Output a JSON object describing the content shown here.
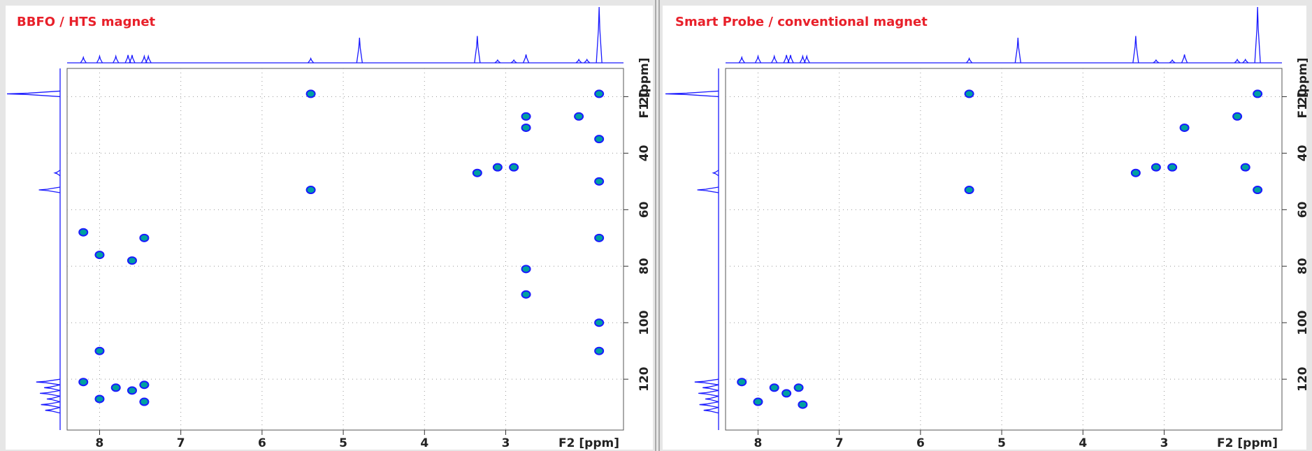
{
  "chart_data": [
    {
      "type": "scatter",
      "title": "BBFO / HTS magnet",
      "xlabel": "F2 [ppm]",
      "ylabel": "F1 [ppm]",
      "xlim": [
        8.4,
        1.55
      ],
      "ylim": [
        10,
        138
      ],
      "xticks": [
        8,
        7,
        6,
        5,
        4,
        3
      ],
      "yticks": [
        20,
        40,
        60,
        80,
        100,
        120
      ],
      "grid": true,
      "color": "#1a1aff",
      "inner_color": "#00a0a0",
      "x": [
        8.2,
        8.2,
        8.0,
        8.0,
        8.0,
        7.8,
        7.6,
        7.6,
        7.45,
        7.45,
        7.45,
        5.4,
        5.4,
        3.35,
        3.1,
        2.9,
        2.75,
        2.75,
        2.1,
        1.85,
        1.85,
        1.85,
        1.85,
        1.85,
        1.85,
        2.75,
        2.75
      ],
      "y": [
        121,
        68,
        127,
        76,
        110,
        123,
        124,
        78,
        122,
        128,
        70,
        53,
        19,
        47,
        45,
        45,
        31,
        27,
        27,
        19,
        35,
        50,
        70,
        100,
        110,
        81,
        90
      ],
      "f2_projection": {
        "x": [
          8.2,
          8.0,
          7.8,
          7.65,
          7.6,
          7.45,
          7.4,
          5.4,
          4.8,
          3.35,
          3.1,
          2.9,
          2.75,
          2.1,
          2.0,
          1.85
        ],
        "values": [
          10,
          12,
          12,
          14,
          14,
          12,
          12,
          8,
          45,
          48,
          5,
          5,
          15,
          6,
          6,
          100
        ]
      },
      "f1_projection": {
        "y": [
          19,
          47,
          53,
          121,
          123,
          125,
          127,
          129,
          131
        ],
        "values": [
          100,
          10,
          40,
          45,
          30,
          38,
          25,
          36,
          28
        ]
      }
    },
    {
      "type": "scatter",
      "title": "Smart Probe / conventional magnet",
      "xlabel": "F2 [ppm]",
      "ylabel": "F1 [ppm]",
      "xlim": [
        8.4,
        1.55
      ],
      "ylim": [
        10,
        138
      ],
      "xticks": [
        8,
        7,
        6,
        5,
        4,
        3
      ],
      "yticks": [
        20,
        40,
        60,
        80,
        100,
        120
      ],
      "grid": true,
      "color": "#1a1aff",
      "inner_color": "#00a0a0",
      "x": [
        8.2,
        8.0,
        7.8,
        7.65,
        7.5,
        7.45,
        5.4,
        5.4,
        3.35,
        3.1,
        2.9,
        2.75,
        2.1,
        2.0,
        1.85,
        1.85
      ],
      "y": [
        121,
        128,
        123,
        125,
        123,
        129,
        53,
        19,
        47,
        45,
        45,
        31,
        27,
        45,
        19,
        53
      ],
      "f2_projection": {
        "x": [
          8.2,
          8.0,
          7.8,
          7.65,
          7.6,
          7.45,
          7.4,
          5.4,
          4.8,
          3.35,
          3.1,
          2.9,
          2.75,
          2.1,
          2.0,
          1.85
        ],
        "values": [
          10,
          12,
          12,
          14,
          14,
          12,
          12,
          8,
          45,
          48,
          5,
          5,
          15,
          6,
          6,
          100
        ]
      },
      "f1_projection": {
        "y": [
          19,
          47,
          53,
          121,
          123,
          125,
          127,
          129,
          131
        ],
        "values": [
          100,
          10,
          40,
          45,
          30,
          38,
          25,
          36,
          28
        ]
      }
    }
  ]
}
